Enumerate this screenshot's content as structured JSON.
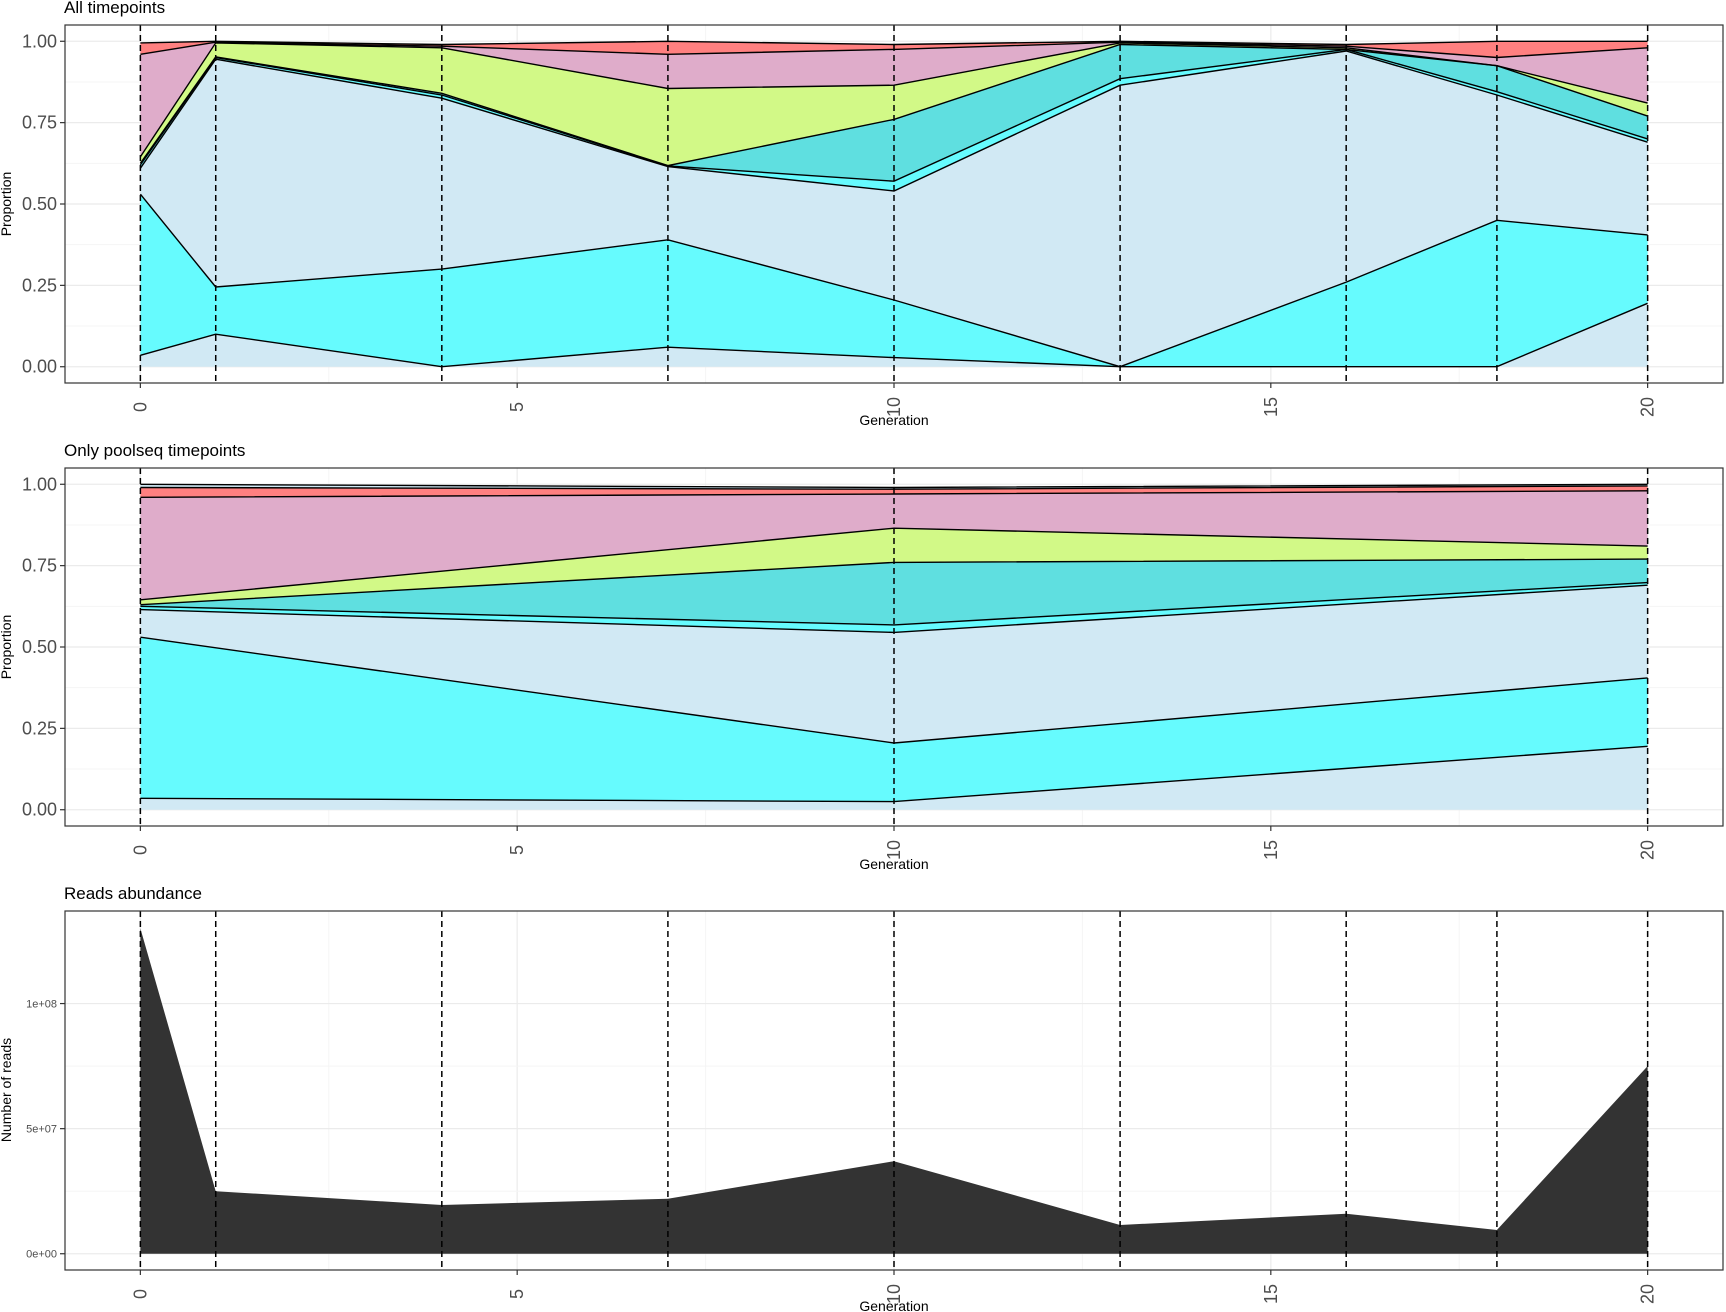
{
  "palette": {
    "background": "#ffffff",
    "panel_border": "#333333",
    "grid_major": "#ebebeb",
    "grid_minor": "#f5f5f5",
    "band_colors": [
      "#d1e9f4",
      "#66fbfe",
      "#d1e9f4",
      "#66fbfe",
      "#5fdfe0",
      "#d2f987",
      "#dfacca",
      "#ff8080"
    ],
    "reads_fill": "#333333"
  },
  "chart_data": [
    {
      "type": "area",
      "title": "All timepoints",
      "xlabel": "Generation",
      "ylabel": "Proportion",
      "xlim": [
        -1,
        21
      ],
      "ylim": [
        -0.05,
        1.05
      ],
      "x_ticks": [
        "0",
        "5",
        "10",
        "15",
        "20"
      ],
      "y_ticks": [
        "0.00",
        "0.25",
        "0.50",
        "0.75",
        "1.00"
      ],
      "x": [
        0,
        1,
        4,
        7,
        10,
        13,
        16,
        18,
        20
      ],
      "stacked_boundaries": [
        [
          0.035,
          0.1,
          0.0,
          0.06,
          0.028,
          0.0,
          0.0,
          0.0,
          0.195
        ],
        [
          0.53,
          0.245,
          0.3,
          0.39,
          0.205,
          0.0,
          0.26,
          0.45,
          0.405
        ],
        [
          0.61,
          0.945,
          0.825,
          0.615,
          0.54,
          0.865,
          0.97,
          0.835,
          0.69
        ],
        [
          0.62,
          0.95,
          0.835,
          0.617,
          0.57,
          0.885,
          0.975,
          0.845,
          0.7
        ],
        [
          0.625,
          0.952,
          0.84,
          0.618,
          0.76,
          0.99,
          0.975,
          0.925,
          0.77
        ],
        [
          0.645,
          0.995,
          0.98,
          0.855,
          0.865,
          0.995,
          0.98,
          0.925,
          0.81
        ],
        [
          0.96,
          0.997,
          0.985,
          0.96,
          0.975,
          0.997,
          0.985,
          0.95,
          0.98
        ],
        [
          0.995,
          1.0,
          0.99,
          1.0,
          0.99,
          1.0,
          0.99,
          1.0,
          1.0
        ]
      ],
      "grid": true,
      "vlines": [
        0,
        1,
        4,
        7,
        10,
        13,
        16,
        18,
        20
      ]
    },
    {
      "type": "area",
      "title": "Only poolseq timepoints",
      "xlabel": "Generation",
      "ylabel": "Proportion",
      "xlim": [
        -1,
        21
      ],
      "ylim": [
        -0.05,
        1.05
      ],
      "x_ticks": [
        "0",
        "5",
        "10",
        "15",
        "20"
      ],
      "y_ticks": [
        "0.00",
        "0.25",
        "0.50",
        "0.75",
        "1.00"
      ],
      "x": [
        0,
        10,
        20
      ],
      "stacked_boundaries": [
        [
          0.035,
          0.025,
          0.195
        ],
        [
          0.53,
          0.205,
          0.405
        ],
        [
          0.615,
          0.545,
          0.69
        ],
        [
          0.625,
          0.568,
          0.698
        ],
        [
          0.63,
          0.76,
          0.77
        ],
        [
          0.645,
          0.865,
          0.81
        ],
        [
          0.96,
          0.97,
          0.98
        ],
        [
          0.99,
          0.985,
          0.995
        ],
        [
          1.0,
          0.99,
          1.0
        ]
      ],
      "grid": true,
      "vlines": [
        0,
        10,
        20
      ]
    },
    {
      "type": "area",
      "title": "Reads abundance",
      "xlabel": "Generation",
      "ylabel": "Number of reads",
      "xlim": [
        -1,
        21
      ],
      "ylim": [
        -6500000,
        137000000
      ],
      "x_ticks": [
        "0",
        "5",
        "10",
        "15",
        "20"
      ],
      "y_ticks": [
        "0e+00",
        "5e+07",
        "1e+08"
      ],
      "x": [
        0,
        1,
        4,
        7,
        10,
        13,
        16,
        18,
        20
      ],
      "values": [
        130000000,
        25000000,
        19500000,
        22000000,
        37000000,
        11500000,
        16000000,
        9500000,
        75000000
      ],
      "grid": true,
      "vlines": [
        0,
        1,
        4,
        7,
        10,
        13,
        16,
        18,
        20
      ]
    }
  ]
}
